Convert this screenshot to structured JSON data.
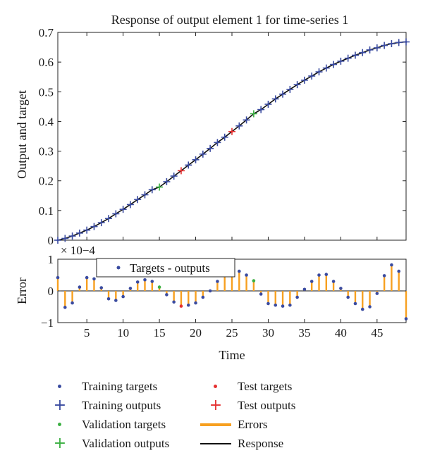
{
  "colors": {
    "training": "#3a4ba0",
    "validation": "#3cb043",
    "test": "#e53030",
    "errors": "#f7a020",
    "response": "#111111",
    "axis": "#222222"
  },
  "top_title": "Response of output element 1 for time-series 1",
  "top_ylabel": "Output and target",
  "bottom_ylabel": "Error",
  "bottom_xlabel": "Time",
  "exponent_label": "× 10−4",
  "inner_legend_label": "Targets - outputs",
  "legend": {
    "training_targets": "Training targets",
    "training_outputs": "Training outputs",
    "validation_targets": "Validation targets",
    "validation_outputs": "Validation outputs",
    "test_targets": "Test targets",
    "test_outputs": "Test outputs",
    "errors": "Errors",
    "response": "Response"
  },
  "chart_data": [
    {
      "type": "line",
      "title": "Response of output element 1 for time-series 1",
      "xlabel": "",
      "ylabel": "Output and target",
      "xlim": [
        1,
        49
      ],
      "ylim": [
        0,
        0.7
      ],
      "yticks": [
        0,
        0.1,
        0.2,
        0.3,
        0.4,
        0.5,
        0.6,
        0.7
      ],
      "ytick_labels": [
        "0",
        "0.1",
        "0.2",
        "0.3",
        "0.4",
        "0.5",
        "0.6",
        "0.7"
      ],
      "grid": false,
      "x": [
        1,
        2,
        3,
        4,
        5,
        6,
        7,
        8,
        9,
        10,
        11,
        12,
        13,
        14,
        15,
        16,
        17,
        18,
        19,
        20,
        21,
        22,
        23,
        24,
        25,
        26,
        27,
        28,
        29,
        30,
        31,
        32,
        33,
        34,
        35,
        36,
        37,
        38,
        39,
        40,
        41,
        42,
        43,
        44,
        45,
        46,
        47,
        48,
        49
      ],
      "y": [
        0.0,
        0.006,
        0.014,
        0.024,
        0.034,
        0.046,
        0.059,
        0.073,
        0.089,
        0.104,
        0.12,
        0.137,
        0.153,
        0.17,
        0.179,
        0.197,
        0.216,
        0.234,
        0.253,
        0.271,
        0.29,
        0.309,
        0.329,
        0.347,
        0.366,
        0.385,
        0.405,
        0.426,
        0.44,
        0.458,
        0.476,
        0.492,
        0.508,
        0.524,
        0.539,
        0.553,
        0.567,
        0.58,
        0.592,
        0.603,
        0.613,
        0.623,
        0.632,
        0.641,
        0.648,
        0.656,
        0.662,
        0.666,
        0.668
      ],
      "validation_x": [
        15,
        28
      ],
      "test_x": [
        18,
        25
      ]
    },
    {
      "type": "bar",
      "xlabel": "Time",
      "ylabel": "Error",
      "scale_label": "× 10−4",
      "xlim": [
        1,
        49
      ],
      "ylim": [
        -1,
        1
      ],
      "xticks": [
        5,
        10,
        15,
        20,
        25,
        30,
        35,
        40,
        45
      ],
      "yticks": [
        -1,
        0,
        1
      ],
      "ytick_labels": [
        "−1",
        "0",
        "1"
      ],
      "series_label": "Targets - outputs",
      "x": [
        1,
        2,
        3,
        4,
        5,
        6,
        7,
        8,
        9,
        10,
        11,
        12,
        13,
        14,
        15,
        16,
        17,
        18,
        19,
        20,
        21,
        22,
        23,
        24,
        25,
        26,
        27,
        28,
        29,
        30,
        31,
        32,
        33,
        34,
        35,
        36,
        37,
        38,
        39,
        40,
        41,
        42,
        43,
        44,
        45,
        46,
        47,
        48,
        49
      ],
      "values": [
        0.42,
        -0.52,
        -0.38,
        0.12,
        0.42,
        0.38,
        0.1,
        -0.25,
        -0.3,
        -0.18,
        0.08,
        0.28,
        0.35,
        0.3,
        0.12,
        -0.12,
        -0.35,
        -0.48,
        -0.45,
        -0.38,
        -0.2,
        0.0,
        0.3,
        0.52,
        0.58,
        0.62,
        0.5,
        0.32,
        -0.1,
        -0.4,
        -0.45,
        -0.48,
        -0.45,
        -0.2,
        0.05,
        0.3,
        0.5,
        0.52,
        0.3,
        0.08,
        -0.2,
        -0.4,
        -0.58,
        -0.5,
        -0.08,
        0.48,
        0.82,
        0.62,
        -0.88
      ]
    }
  ]
}
